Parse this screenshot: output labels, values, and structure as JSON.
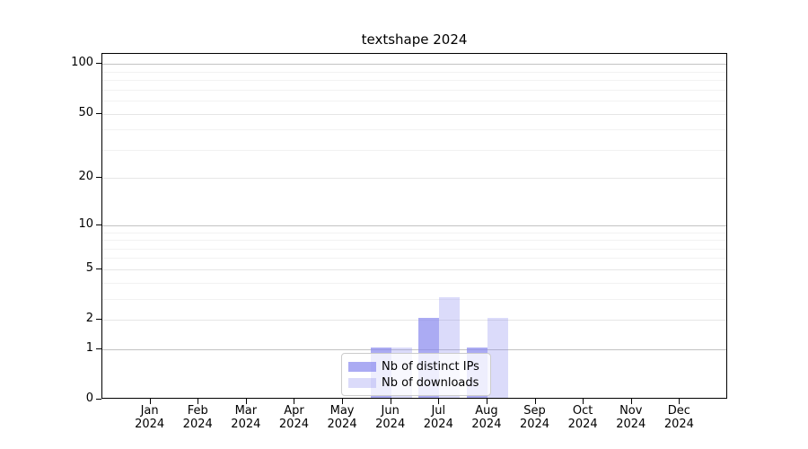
{
  "title": "textshape 2024",
  "legend": {
    "items": [
      {
        "label": "Nb of distinct IPs"
      },
      {
        "label": "Nb of downloads"
      }
    ]
  },
  "colors": {
    "bar_distinct_ips": "rgba(136,136,238,0.7)",
    "bar_downloads": "rgba(136,136,238,0.3)",
    "grid_major": "#c3c3c3",
    "grid_mid": "#e6e6e6",
    "grid_minor": "#f2f2f2",
    "axis": "#000000",
    "legend_border": "#cccccc"
  },
  "chart_data": {
    "type": "bar",
    "title": "textshape 2024",
    "categories": [
      "Jan",
      "Feb",
      "Mar",
      "Apr",
      "May",
      "Jun",
      "Jul",
      "Aug",
      "Sep",
      "Oct",
      "Nov",
      "Dec"
    ],
    "category_year": "2024",
    "series": [
      {
        "name": "Nb of distinct IPs",
        "values": [
          0,
          0,
          0,
          0,
          0,
          1,
          2,
          1,
          0,
          0,
          0,
          0
        ]
      },
      {
        "name": "Nb of downloads",
        "values": [
          0,
          0,
          0,
          0,
          0,
          1,
          3,
          2,
          0,
          0,
          0,
          0
        ]
      }
    ],
    "yscale": "log1p",
    "ylim": [
      0,
      115
    ],
    "y_tick_labels": [
      0,
      1,
      2,
      5,
      10,
      20,
      50,
      100
    ],
    "y_major_gridlines": [
      1,
      10,
      100
    ],
    "y_mid_gridlines": [
      2,
      5,
      20,
      50
    ],
    "y_minor_gridlines": [
      3,
      4,
      6,
      7,
      8,
      9,
      30,
      40,
      60,
      70,
      80,
      90
    ],
    "grid": true,
    "legend_position": "lower center"
  }
}
